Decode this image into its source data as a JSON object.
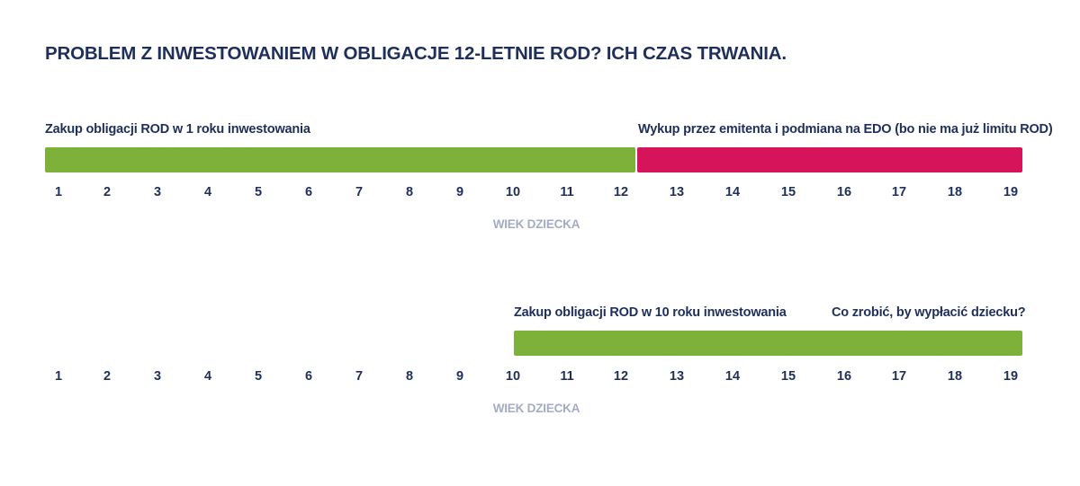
{
  "title": "PROBLEM Z INWESTOWANIEM W OBLIGACJE 12-LETNIE ROD? ICH CZAS TRWANIA.",
  "colors": {
    "green": "#7db13a",
    "red": "#d5145a",
    "text": "#1f2f5c",
    "axis": "#a3acc4"
  },
  "timelines": [
    {
      "label_left": "Zakup obligacji ROD w 1 roku inwestowania",
      "label_right": "Wykup przez emitenta i podmiana na EDO (bo nie ma już limitu ROD)",
      "segments": [
        {
          "from": 1,
          "to": 12,
          "color": "green"
        },
        {
          "from": 13,
          "to": 19,
          "color": "red"
        }
      ],
      "ticks": [
        "1",
        "2",
        "3",
        "4",
        "5",
        "6",
        "7",
        "8",
        "9",
        "10",
        "11",
        "12",
        "13",
        "14",
        "15",
        "16",
        "17",
        "18",
        "19"
      ],
      "axis_label": "WIEK DZIECKA"
    },
    {
      "label_left": "Zakup obligacji ROD w 10 roku inwestowania",
      "label_right": "Co zrobić, by wypłacić dziecku?",
      "segments": [
        {
          "from": 10,
          "to": 19,
          "color": "green"
        }
      ],
      "ticks": [
        "1",
        "2",
        "3",
        "4",
        "5",
        "6",
        "7",
        "8",
        "9",
        "10",
        "11",
        "12",
        "13",
        "14",
        "15",
        "16",
        "17",
        "18",
        "19"
      ],
      "axis_label": "WIEK DZIECKA"
    }
  ]
}
